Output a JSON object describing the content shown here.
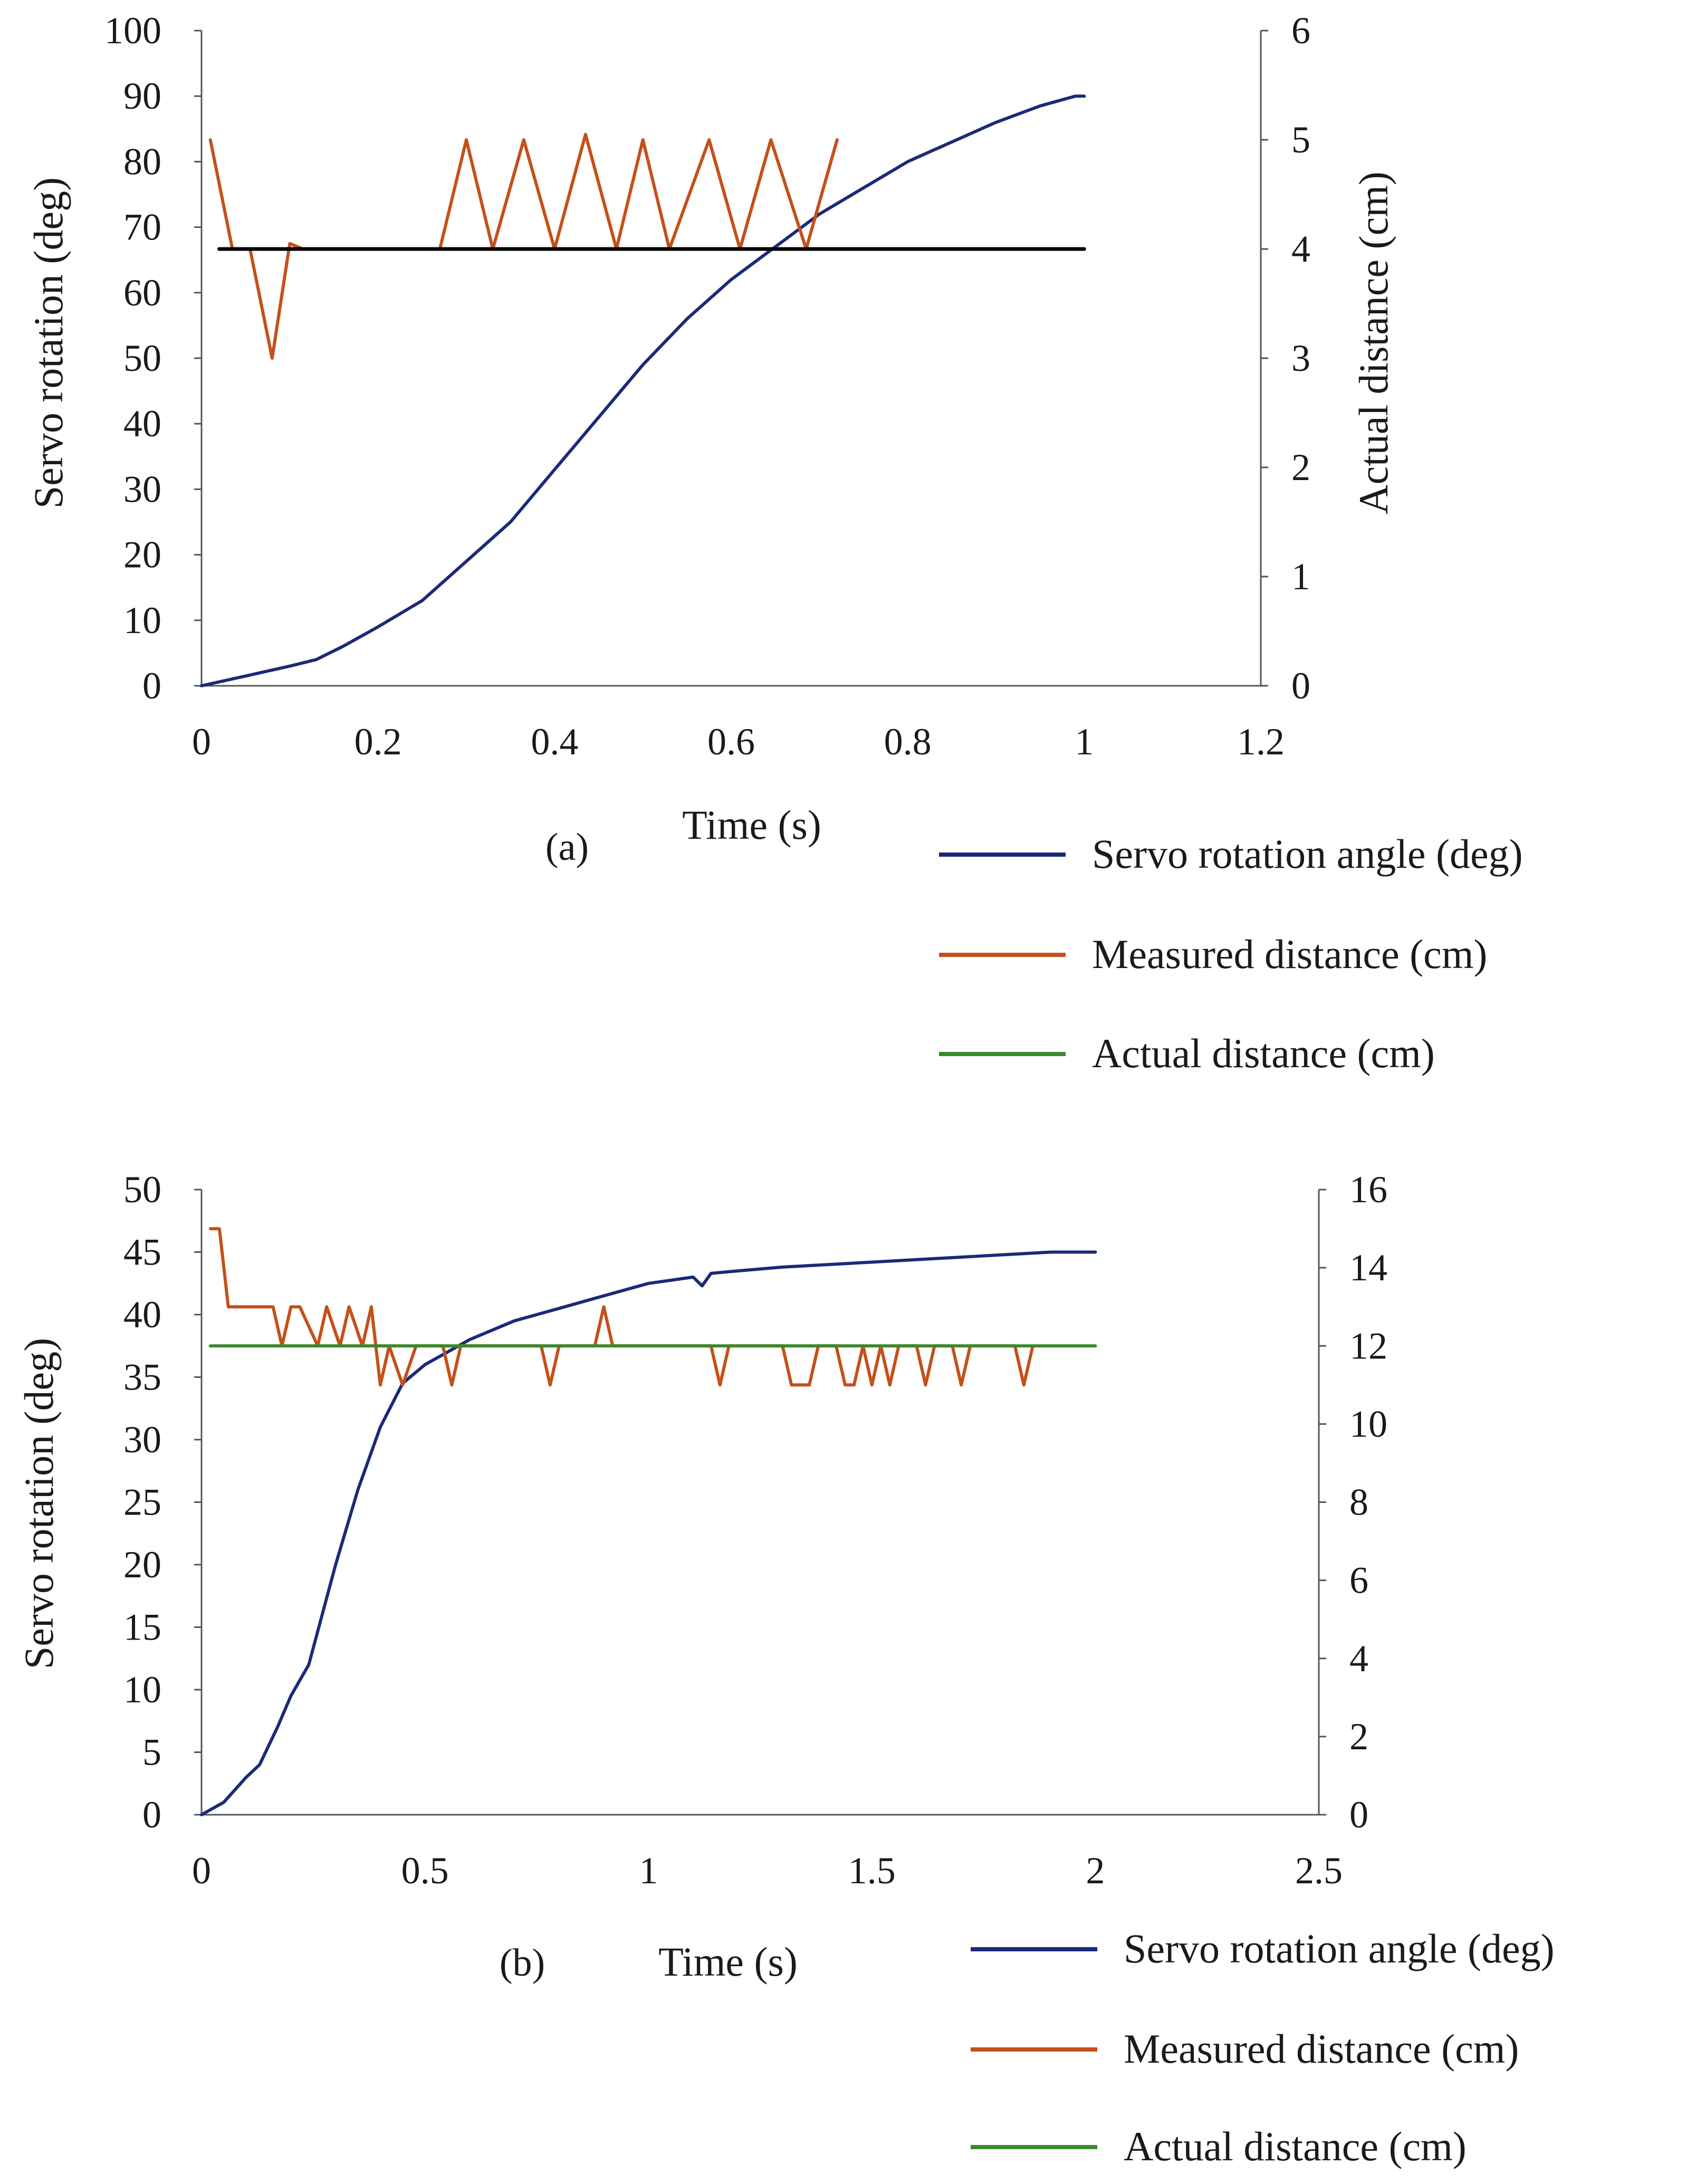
{
  "colors": {
    "servo": "#1b2a78",
    "measured": "#c4501a",
    "actual": "#3a8a2a",
    "reference": "#000000",
    "axis": "#555555"
  },
  "chart_data": [
    {
      "type": "line",
      "panel_label": "(a)",
      "xlabel": "Time (s)",
      "ylabel": "Servo rotation (deg)",
      "y2label": "Actual distance (cm)",
      "xlim": [
        0,
        1.2
      ],
      "ylim": [
        0,
        100
      ],
      "y2lim": [
        0,
        6
      ],
      "x_ticks": [
        "0",
        "0.2",
        "0.4",
        "0.6",
        "0.8",
        "1",
        "1.2"
      ],
      "y_ticks": [
        "0",
        "10",
        "20",
        "30",
        "40",
        "50",
        "60",
        "70",
        "80",
        "90",
        "100"
      ],
      "y2_ticks": [
        "0",
        "1",
        "2",
        "3",
        "4",
        "5",
        "6"
      ],
      "legend": [
        "Servo rotation angle (deg)",
        "Measured distance (cm)",
        "Actual distance (cm)"
      ],
      "legend_position": "bottom-right",
      "series": [
        {
          "name": "Servo rotation angle (deg)",
          "axis": "left",
          "color_key": "servo",
          "x": [
            0,
            0.05,
            0.1,
            0.13,
            0.16,
            0.2,
            0.25,
            0.3,
            0.35,
            0.4,
            0.45,
            0.5,
            0.55,
            0.6,
            0.65,
            0.7,
            0.75,
            0.8,
            0.85,
            0.9,
            0.95,
            0.99,
            1.0
          ],
          "values": [
            0,
            1.5,
            3,
            4,
            6,
            9,
            13,
            19,
            25,
            33,
            41,
            49,
            56,
            62,
            67,
            72,
            76,
            80,
            83,
            86,
            88.5,
            90,
            90
          ]
        },
        {
          "name": "Measured distance (cm)",
          "axis": "right",
          "color_key": "measured",
          "x": [
            0.01,
            0.035,
            0.055,
            0.08,
            0.1,
            0.115,
            0.27,
            0.3,
            0.33,
            0.365,
            0.4,
            0.435,
            0.47,
            0.5,
            0.53,
            0.575,
            0.61,
            0.645,
            0.685,
            0.72
          ],
          "values": [
            5,
            4,
            4,
            3,
            4.05,
            4,
            4,
            5,
            4,
            5,
            4,
            5.05,
            4,
            5,
            4,
            5,
            4,
            5,
            4,
            5
          ]
        },
        {
          "name": "Actual distance (cm)",
          "axis": "right",
          "color_key": "actual",
          "x": [
            0.02,
            0.72
          ],
          "values": [
            4,
            4
          ]
        },
        {
          "name": "reference",
          "axis": "right",
          "color_key": "reference",
          "x": [
            0.02,
            1.0
          ],
          "values": [
            4,
            4
          ]
        }
      ]
    },
    {
      "type": "line",
      "panel_label": "(b)",
      "xlabel": "Time (s)",
      "ylabel": "Servo rotation (deg)",
      "y2label": "",
      "xlim": [
        0,
        2.5
      ],
      "ylim": [
        0,
        50
      ],
      "y2lim": [
        0,
        16
      ],
      "x_ticks": [
        "0",
        "0.5",
        "1",
        "1.5",
        "2",
        "2.5"
      ],
      "y_ticks": [
        "0",
        "5",
        "10",
        "15",
        "20",
        "25",
        "30",
        "35",
        "40",
        "45",
        "50"
      ],
      "y2_ticks": [
        "0",
        "2",
        "4",
        "6",
        "8",
        "10",
        "12",
        "14",
        "16"
      ],
      "legend": [
        "Servo rotation angle (deg)",
        "Measured distance (cm)",
        "Actual distance (cm)"
      ],
      "legend_position": "bottom-right",
      "series": [
        {
          "name": "Servo rotation angle (deg)",
          "axis": "left",
          "color_key": "servo",
          "x": [
            0,
            0.05,
            0.1,
            0.13,
            0.17,
            0.2,
            0.24,
            0.3,
            0.35,
            0.4,
            0.45,
            0.5,
            0.55,
            0.6,
            0.7,
            0.8,
            0.9,
            1.0,
            1.1,
            1.12,
            1.14,
            1.2,
            1.3,
            1.4,
            1.5,
            1.6,
            1.7,
            1.8,
            1.9,
            2.0
          ],
          "values": [
            0,
            1,
            3,
            4,
            7,
            9.5,
            12,
            20,
            26,
            31,
            34.5,
            36,
            37,
            38,
            39.5,
            40.5,
            41.5,
            42.5,
            43,
            42.3,
            43.3,
            43.5,
            43.8,
            44,
            44.2,
            44.4,
            44.6,
            44.8,
            45,
            45
          ]
        },
        {
          "name": "Measured distance (cm)",
          "axis": "right",
          "color_key": "measured",
          "x": [
            0.02,
            0.04,
            0.06,
            0.1,
            0.16,
            0.18,
            0.2,
            0.22,
            0.26,
            0.28,
            0.31,
            0.33,
            0.36,
            0.38,
            0.4,
            0.42,
            0.45,
            0.48,
            0.54,
            0.56,
            0.58,
            0.76,
            0.78,
            0.8,
            0.88,
            0.9,
            0.92,
            1.14,
            1.16,
            1.18,
            1.3,
            1.32,
            1.36,
            1.38,
            1.42,
            1.44,
            1.46,
            1.48,
            1.5,
            1.52,
            1.54,
            1.56,
            1.6,
            1.62,
            1.64,
            1.68,
            1.7,
            1.72,
            1.82,
            1.84,
            1.86
          ],
          "values": [
            15,
            15,
            13,
            13,
            13,
            12,
            13,
            13,
            12,
            13,
            12,
            13,
            12,
            13,
            11,
            12,
            11,
            12,
            12,
            11,
            12,
            12,
            11,
            12,
            12,
            13,
            12,
            12,
            11,
            12,
            12,
            11,
            11,
            12,
            12,
            11,
            11,
            12,
            11,
            12,
            11,
            12,
            12,
            11,
            12,
            12,
            11,
            12,
            12,
            11,
            12
          ]
        },
        {
          "name": "Actual distance (cm)",
          "axis": "right",
          "color_key": "actual",
          "x": [
            0.02,
            2.0
          ],
          "values": [
            12,
            12
          ]
        }
      ]
    }
  ]
}
